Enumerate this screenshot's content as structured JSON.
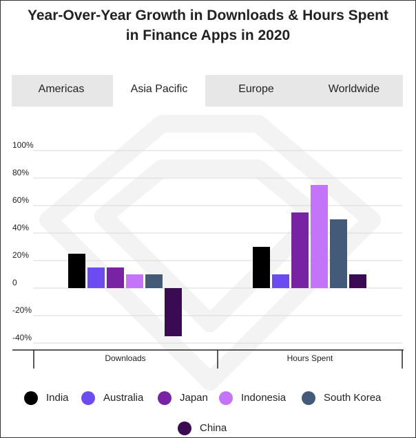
{
  "title_line1": "Year-Over-Year Growth in Downloads & Hours Spent",
  "title_line2": "in Finance Apps in 2020",
  "tabs": [
    {
      "label": "Americas",
      "active": false
    },
    {
      "label": "Asia Pacific",
      "active": true
    },
    {
      "label": "Europe",
      "active": false
    },
    {
      "label": "Worldwide",
      "active": false
    }
  ],
  "colors": {
    "India": "#000000",
    "Australia": "#6c4cf0",
    "Japan": "#7723a3",
    "Indonesia": "#c474f7",
    "South Korea": "#435b78",
    "China": "#3a0a52"
  },
  "chart_data": {
    "type": "bar",
    "title": "Year-Over-Year Growth in Downloads & Hours Spent in Finance Apps in 2020",
    "categories": [
      "Downloads",
      "Hours Spent"
    ],
    "series": [
      {
        "name": "India",
        "values": [
          25,
          30
        ]
      },
      {
        "name": "Australia",
        "values": [
          15,
          10
        ]
      },
      {
        "name": "Japan",
        "values": [
          15,
          55
        ]
      },
      {
        "name": "Indonesia",
        "values": [
          10,
          75
        ]
      },
      {
        "name": "South Korea",
        "values": [
          10,
          50
        ]
      },
      {
        "name": "China",
        "values": [
          -35,
          10
        ]
      }
    ],
    "yticks": [
      "100%",
      "80%",
      "60%",
      "40%",
      "20%",
      "0",
      "-20%",
      "-40%"
    ],
    "ytick_values": [
      100,
      80,
      60,
      40,
      20,
      0,
      -20,
      -40
    ],
    "ylim": [
      -45,
      100
    ],
    "grid": true,
    "legend_position": "bottom"
  }
}
